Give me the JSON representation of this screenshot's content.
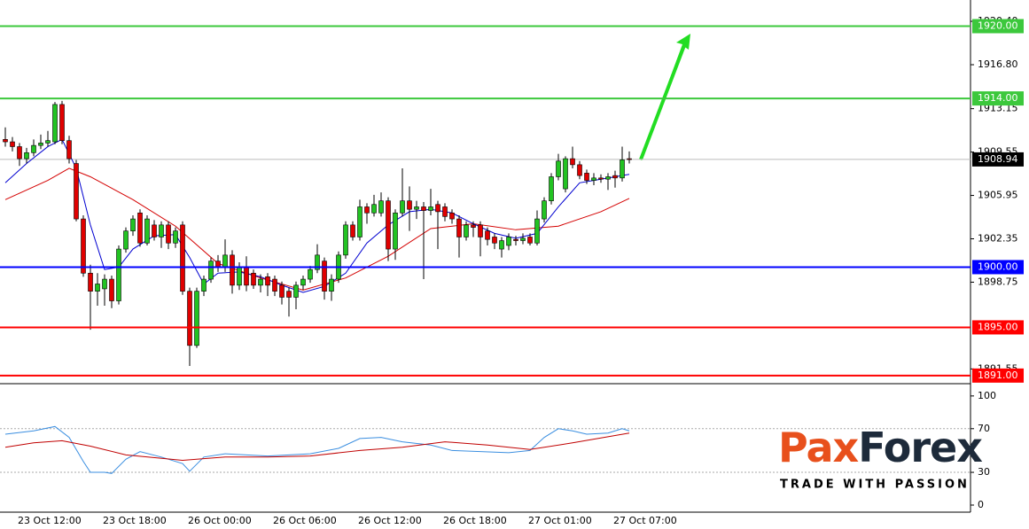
{
  "chart_data": [
    {
      "type": "candlestick",
      "categories": [
        null,
        "23 Oct 12:00",
        null,
        null,
        null,
        null,
        null,
        null,
        null,
        null,
        null,
        null,
        null,
        "23 Oct 18:00",
        null,
        null,
        null,
        null,
        null,
        null,
        null,
        null,
        null,
        null,
        null,
        "26 Oct 00:00",
        null,
        null,
        null,
        null,
        null,
        null,
        null,
        null,
        null,
        null,
        null,
        "26 Oct 06:00",
        null,
        null,
        null,
        null,
        null,
        null,
        null,
        null,
        null,
        null,
        null,
        "26 Oct 12:00",
        null,
        null,
        null,
        null,
        null,
        null,
        null,
        null,
        null,
        null,
        null,
        "26 Oct 18:00",
        null,
        null,
        null,
        null,
        null,
        null,
        null,
        null,
        null,
        null,
        null,
        "27 Oct 01:00",
        null,
        null,
        null,
        null,
        null,
        null,
        null,
        null,
        null,
        null,
        null,
        "27 Oct 07:00",
        null,
        null,
        null
      ],
      "open": [
        1910.6,
        1910.4,
        1910.0,
        1909.0,
        1909.5,
        1910.1,
        1910.3,
        1910.4,
        1913.5,
        1910.5,
        1908.6,
        1904.0,
        1899.5,
        1898.0,
        1898.2,
        1899.0,
        1897.2,
        1901.5,
        1903.0,
        1904.5,
        1902.0,
        1903.5,
        1902.5,
        1903.5,
        1902.0,
        1903.5,
        1898.0,
        1893.5,
        1898.0,
        1899.0,
        1900.5,
        1900.0,
        1901.0,
        1898.5,
        1900.0,
        1899.5,
        1898.5,
        1899.2,
        1899.0,
        1898.5,
        1898.0,
        1897.5,
        1898.5,
        1899.0,
        1899.8,
        1900.5,
        1898.0,
        1899.0,
        1901.0,
        1903.5,
        1902.5,
        1905.0,
        1904.5,
        1904.5,
        1905.5,
        1901.5,
        1904.5,
        1905.5,
        1904.8,
        1905.0,
        1904.7,
        1905.2,
        1905.0,
        1904.5,
        1904.0,
        1902.5,
        1903.5,
        1903.5,
        1903.0,
        1902.5,
        1901.5,
        1901.8,
        1902.3,
        1902.2,
        1902.5,
        1902.0,
        1904.0,
        1905.5,
        1907.5,
        1906.5,
        1909.0,
        1908.5,
        1907.8,
        1907.2,
        1907.4,
        1907.3,
        1907.6,
        1907.4,
        1909.0
      ],
      "high": [
        1911.6,
        1910.8,
        1910.3,
        1909.9,
        1910.6,
        1911.0,
        1911.3,
        1913.7,
        1913.8,
        1910.9,
        1908.9,
        1904.3,
        1900.2,
        1899.5,
        1899.4,
        1899.3,
        1901.8,
        1903.3,
        1904.3,
        1904.8,
        1904.3,
        1903.9,
        1903.8,
        1903.8,
        1903.3,
        1903.8,
        1898.3,
        1898.3,
        1899.3,
        1900.8,
        1901.0,
        1902.3,
        1901.4,
        1900.4,
        1900.9,
        1899.8,
        1899.4,
        1899.5,
        1899.3,
        1898.8,
        1898.3,
        1898.8,
        1899.3,
        1900.1,
        1901.9,
        1900.8,
        1899.4,
        1901.3,
        1903.8,
        1903.8,
        1905.6,
        1905.3,
        1906.0,
        1906.2,
        1905.8,
        1904.8,
        1908.2,
        1906.7,
        1905.5,
        1905.4,
        1906.5,
        1905.5,
        1905.3,
        1904.8,
        1904.3,
        1903.8,
        1903.8,
        1903.8,
        1903.3,
        1902.8,
        1902.5,
        1902.8,
        1902.6,
        1902.8,
        1902.8,
        1904.7,
        1905.8,
        1907.8,
        1909.4,
        1909.2,
        1910.0,
        1908.8,
        1908.1,
        1907.8,
        1907.7,
        1907.8,
        1908.0,
        1910.0,
        1909.6
      ],
      "low": [
        1910.0,
        1909.6,
        1908.4,
        1908.6,
        1909.2,
        1909.8,
        1910.0,
        1910.2,
        1910.2,
        1908.6,
        1903.8,
        1899.2,
        1894.8,
        1896.8,
        1896.8,
        1896.6,
        1896.9,
        1901.2,
        1902.6,
        1901.7,
        1901.8,
        1902.2,
        1901.6,
        1901.5,
        1901.6,
        1897.7,
        1891.8,
        1893.3,
        1897.6,
        1898.7,
        1899.6,
        1899.6,
        1897.8,
        1898.1,
        1898.0,
        1898.2,
        1897.9,
        1897.6,
        1897.6,
        1896.9,
        1895.9,
        1896.5,
        1898.1,
        1898.7,
        1899.5,
        1897.3,
        1897.2,
        1898.7,
        1900.7,
        1902.2,
        1902.2,
        1903.6,
        1904.2,
        1904.2,
        1900.5,
        1900.6,
        1904.2,
        1903.0,
        1904.0,
        1899.0,
        1904.3,
        1901.5,
        1903.8,
        1903.6,
        1900.8,
        1902.2,
        1902.5,
        1900.9,
        1901.8,
        1901.5,
        1900.8,
        1901.4,
        1901.8,
        1901.9,
        1901.8,
        1901.8,
        1903.7,
        1905.2,
        1907.2,
        1906.2,
        1908.2,
        1907.3,
        1906.9,
        1906.8,
        1907.0,
        1906.4,
        1906.6,
        1907.1,
        1908.6
      ],
      "close": [
        1910.4,
        1910.0,
        1909.0,
        1909.5,
        1910.1,
        1910.3,
        1910.5,
        1913.5,
        1910.5,
        1909.0,
        1904.0,
        1899.5,
        1898.0,
        1898.6,
        1899.0,
        1897.2,
        1901.5,
        1903.0,
        1904.0,
        1902.0,
        1904.0,
        1902.5,
        1903.5,
        1902.0,
        1903.0,
        1898.0,
        1893.5,
        1898.0,
        1899.0,
        1900.5,
        1900.0,
        1901.0,
        1898.5,
        1900.0,
        1898.5,
        1898.5,
        1899.0,
        1898.5,
        1898.0,
        1897.5,
        1897.5,
        1898.5,
        1899.0,
        1899.8,
        1901.0,
        1898.0,
        1899.0,
        1901.0,
        1903.5,
        1902.5,
        1905.0,
        1904.5,
        1905.2,
        1905.5,
        1901.5,
        1904.5,
        1905.5,
        1904.8,
        1905.0,
        1904.7,
        1905.0,
        1904.6,
        1904.2,
        1904.0,
        1902.5,
        1903.5,
        1903.3,
        1902.5,
        1902.3,
        1902.0,
        1902.2,
        1902.5,
        1902.2,
        1902.4,
        1902.0,
        1904.0,
        1905.5,
        1907.5,
        1908.8,
        1909.0,
        1908.5,
        1907.6,
        1907.2,
        1907.4,
        1907.3,
        1907.5,
        1907.4,
        1908.9,
        1908.94
      ],
      "up_color": "#22c322",
      "down_color": "#e00000",
      "ylim": [
        1890.4,
        1922.17
      ],
      "yticks": [
        1891.55,
        1898.75,
        1902.35,
        1905.95,
        1909.55,
        1913.15,
        {
          "value": 1916.8,
          "label": "1916.80"
        },
        {
          "value": 1920.4,
          "label": "1920.40"
        }
      ],
      "overlays": [
        {
          "color": "#d40000",
          "x": [
            0,
            6,
            9,
            12,
            18,
            24,
            30,
            36,
            42,
            48,
            54,
            60,
            66,
            72,
            78,
            84,
            88
          ],
          "values": [
            1905.6,
            1907.2,
            1908.2,
            1907.5,
            1905.6,
            1903.4,
            1900.3,
            1899.1,
            1898.1,
            1899.1,
            1900.9,
            1903.2,
            1903.6,
            1903.1,
            1903.4,
            1904.6,
            1905.7
          ]
        },
        {
          "color": "#0000d0",
          "x": [
            0,
            3,
            6,
            8,
            10,
            12,
            14,
            16,
            18,
            21,
            24,
            26,
            28,
            30,
            33,
            36,
            39,
            42,
            45,
            48,
            51,
            54,
            57,
            60,
            63,
            66,
            69,
            72,
            75,
            78,
            81,
            84,
            88
          ],
          "values": [
            1907.0,
            1908.6,
            1910.0,
            1910.6,
            1908.2,
            1903.5,
            1899.8,
            1900.0,
            1901.5,
            1902.6,
            1902.7,
            1900.8,
            1898.6,
            1899.5,
            1899.6,
            1899.2,
            1898.5,
            1897.9,
            1898.4,
            1899.5,
            1902.0,
            1903.5,
            1904.6,
            1904.8,
            1904.5,
            1903.6,
            1902.8,
            1902.4,
            1902.8,
            1905.0,
            1907.0,
            1907.3,
            1907.7
          ]
        }
      ],
      "levels": [
        {
          "value": 1920,
          "label": "1920.00",
          "color": "#3cc83c"
        },
        {
          "value": 1914,
          "label": "1914.00",
          "color": "#3cc83c"
        },
        {
          "value": 1900,
          "label": "1900.00",
          "color": "#0000ff"
        },
        {
          "value": 1895,
          "label": "1895.00",
          "color": "#ff0000"
        },
        {
          "value": 1891,
          "label": "1891.00",
          "color": "#ff0000"
        }
      ],
      "current_price": 1908.94
    },
    {
      "type": "line",
      "ylim": [
        -6.5,
        108
      ],
      "yticks": [
        0,
        30,
        70,
        100
      ],
      "series": [
        {
          "color": "#3a8ee0",
          "x": [
            0,
            4,
            7,
            9,
            11,
            12,
            14,
            15,
            17,
            19,
            22,
            25,
            26,
            28,
            31,
            37,
            43,
            47,
            50,
            53,
            56,
            60,
            63,
            67,
            71,
            74,
            76,
            78,
            80,
            82,
            85,
            87,
            88
          ],
          "values": [
            65,
            68,
            72,
            62,
            40,
            30,
            30,
            29,
            42,
            49,
            44,
            38,
            31,
            44,
            47,
            45,
            47,
            52,
            61,
            62,
            58,
            55,
            50,
            49,
            48,
            50,
            62,
            70,
            68,
            65,
            66,
            70,
            68
          ]
        },
        {
          "color": "#c00000",
          "x": [
            0,
            4,
            8,
            12,
            17,
            25,
            31,
            37,
            43,
            50,
            56,
            62,
            68,
            74,
            80,
            88
          ],
          "values": [
            53,
            57,
            59,
            54,
            46,
            41,
            44,
            44,
            45,
            50,
            53,
            58,
            55,
            51,
            57,
            66
          ]
        }
      ]
    }
  ],
  "logo": {
    "brand_parts": [
      "Pax",
      "Forex"
    ],
    "tagline": "TRADE WITH PASSION"
  }
}
